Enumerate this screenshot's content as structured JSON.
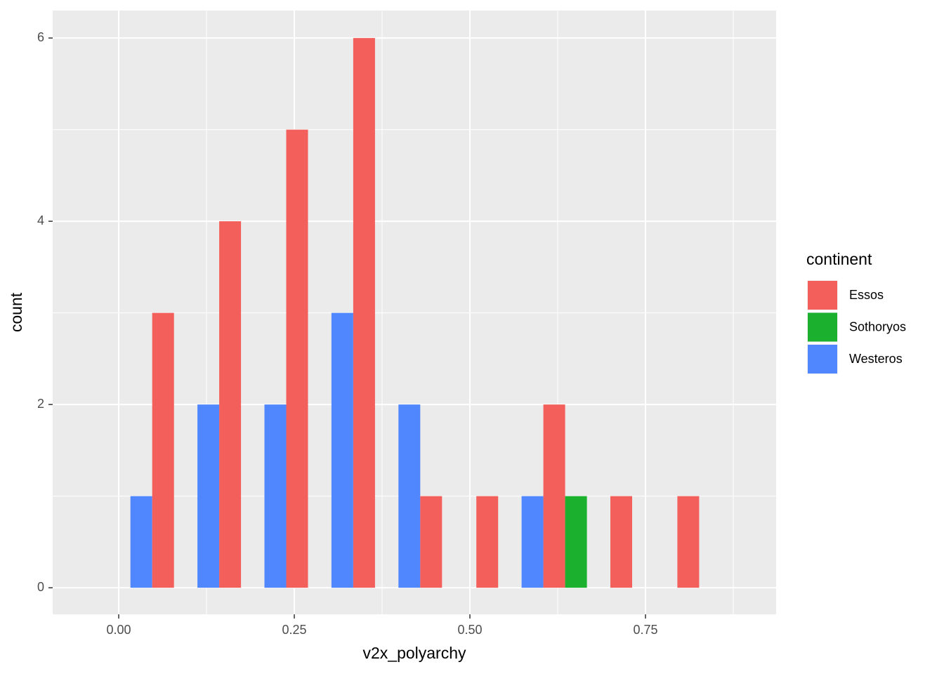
{
  "chart_data": {
    "type": "histogram",
    "x_label": "v2x_polyarchy",
    "y_label": "count",
    "legend_title": "continent",
    "legend_position": "right",
    "bins": [
      0,
      0.0954,
      0.1908,
      0.2862,
      0.3816,
      0.477,
      0.5724,
      0.6678,
      0.7632,
      0.8586
    ],
    "series": [
      {
        "name": "Essos",
        "color": "#f35f5a",
        "values": [
          3,
          4,
          5,
          6,
          1,
          1,
          2,
          1,
          1
        ]
      },
      {
        "name": "Sothoryos",
        "color": "#1bb12f",
        "values": [
          0,
          0,
          0,
          0,
          0,
          0,
          1,
          0,
          0
        ]
      },
      {
        "name": "Westeros",
        "color": "#5087ff",
        "values": [
          1,
          2,
          2,
          3,
          2,
          0,
          1,
          0,
          0
        ]
      }
    ],
    "xlim": [
      -0.094,
      0.936
    ],
    "ylim": [
      -0.29,
      6.3
    ],
    "xticks": [
      {
        "value": 0,
        "label": "0.00"
      },
      {
        "value": 0.25,
        "label": "0.25"
      },
      {
        "value": 0.5,
        "label": "0.50"
      },
      {
        "value": 0.75,
        "label": "0.75"
      }
    ],
    "yticks": [
      0,
      2,
      4,
      6
    ],
    "grid": true
  }
}
